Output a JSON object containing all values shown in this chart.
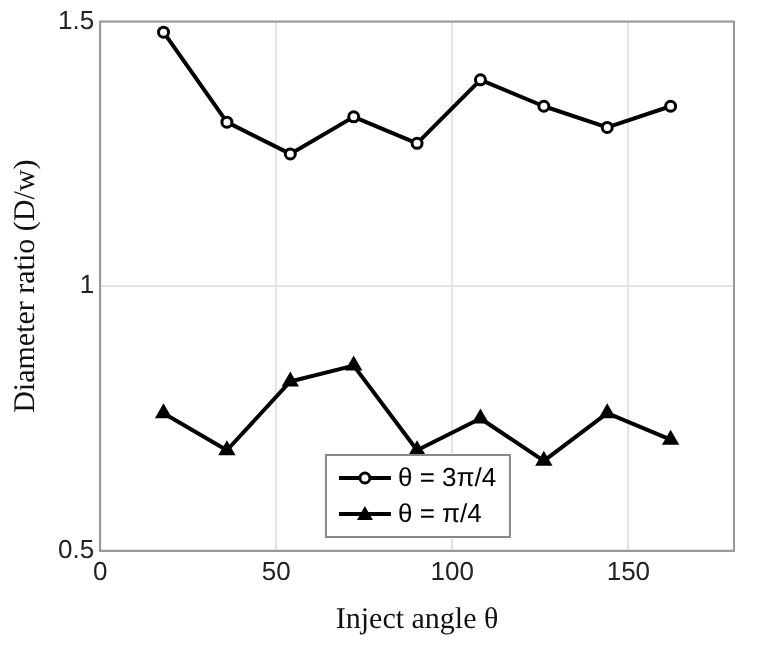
{
  "chart_data": {
    "type": "line",
    "xlabel": "Inject angle θ",
    "ylabel": "Diameter ratio (D/w)",
    "x": [
      18,
      36,
      54,
      72,
      90,
      108,
      126,
      144,
      162
    ],
    "series": [
      {
        "name": "θ = 3π/4",
        "color": "#000000",
        "marker": "circle",
        "values": [
          1.48,
          1.31,
          1.25,
          1.32,
          1.27,
          1.39,
          1.34,
          1.3,
          1.34
        ]
      },
      {
        "name": "θ = π/4",
        "color": "#000000",
        "marker": "triangle",
        "values": [
          0.76,
          0.69,
          0.82,
          0.85,
          0.69,
          0.75,
          0.67,
          0.76,
          0.71
        ]
      }
    ],
    "xlim": [
      0,
      180
    ],
    "xticks": [
      0,
      50,
      100,
      150
    ],
    "ylim": [
      0.5,
      1.5
    ],
    "yticks": [
      0.5,
      1,
      1.5
    ],
    "grid": true,
    "legend": "bottom",
    "line_style": "solid"
  }
}
